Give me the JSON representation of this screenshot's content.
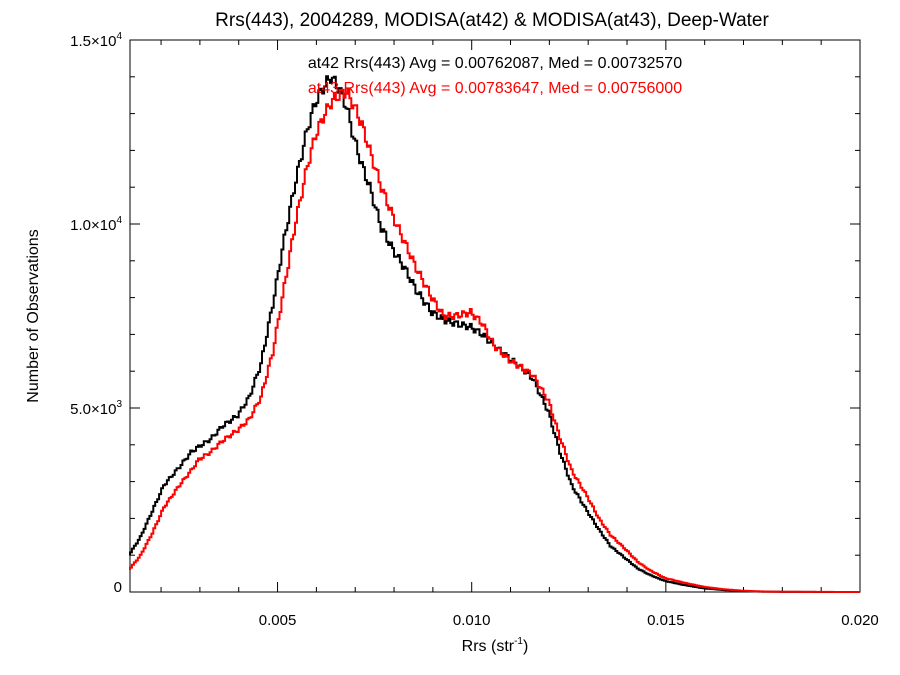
{
  "chart_data": {
    "type": "line",
    "title": "Rrs(443), 2004289, MODISA(at42) & MODISA(at43), Deep-Water",
    "xlabel_main": "Rrs (str",
    "xlabel_sup": "-1",
    "xlabel_close": ")",
    "ylabel": "Number of Observations",
    "xlim": [
      0.0012,
      0.02
    ],
    "ylim": [
      0,
      15000
    ],
    "x_ticks": [
      {
        "value": 0.005,
        "label": "0.005"
      },
      {
        "value": 0.01,
        "label": "0.010"
      },
      {
        "value": 0.015,
        "label": "0.015"
      },
      {
        "value": 0.02,
        "label": "0.020"
      }
    ],
    "y_ticks": [
      {
        "value": 0,
        "mant": "0",
        "exp": ""
      },
      {
        "value": 5000,
        "mant": "5.0×10",
        "exp": "3"
      },
      {
        "value": 10000,
        "mant": "1.0×10",
        "exp": "4"
      },
      {
        "value": 15000,
        "mant": "1.5×10",
        "exp": "4"
      }
    ],
    "x_minor_step": 0.001,
    "y_minor_step": 1000,
    "grid": false,
    "annotations": [
      {
        "text": "at42 Rrs(443) Avg = 0.00762087, Med = 0.00732570",
        "color": "#000000"
      },
      {
        "text": "at43 Rrs(443) Avg = 0.00783647, Med = 0.00756000",
        "color": "#ff0000"
      }
    ],
    "series": [
      {
        "name": "at42",
        "color": "#000000",
        "x": [
          0.0012,
          0.0015,
          0.0018,
          0.0021,
          0.0025,
          0.0028,
          0.003,
          0.0033,
          0.0036,
          0.004,
          0.0043,
          0.0046,
          0.0049,
          0.0052,
          0.0055,
          0.0058,
          0.006,
          0.0062,
          0.0064,
          0.0066,
          0.0068,
          0.007,
          0.0072,
          0.0074,
          0.0077,
          0.008,
          0.0083,
          0.0086,
          0.009,
          0.0093,
          0.0096,
          0.01,
          0.0103,
          0.0106,
          0.011,
          0.0113,
          0.0116,
          0.012,
          0.0123,
          0.0126,
          0.013,
          0.0133,
          0.0136,
          0.014,
          0.0143,
          0.0146,
          0.015,
          0.0155,
          0.016,
          0.0165,
          0.017,
          0.0175,
          0.018,
          0.019,
          0.02
        ],
        "y": [
          1000,
          1500,
          2200,
          2900,
          3400,
          3800,
          3950,
          4150,
          4500,
          4800,
          5300,
          6200,
          7800,
          9600,
          11200,
          12600,
          13300,
          13700,
          14000,
          13700,
          13200,
          12300,
          11600,
          11000,
          9900,
          9300,
          8800,
          8200,
          7600,
          7400,
          7300,
          7200,
          7000,
          6700,
          6350,
          6100,
          5800,
          4900,
          3800,
          2900,
          2200,
          1700,
          1250,
          900,
          640,
          470,
          300,
          190,
          100,
          55,
          25,
          10,
          4,
          1,
          0
        ]
      },
      {
        "name": "at43",
        "color": "#ff0000",
        "x": [
          0.0012,
          0.0015,
          0.0018,
          0.0021,
          0.0025,
          0.0028,
          0.003,
          0.0033,
          0.0036,
          0.004,
          0.0043,
          0.0046,
          0.0049,
          0.0052,
          0.0055,
          0.0058,
          0.006,
          0.0062,
          0.0064,
          0.0066,
          0.0068,
          0.007,
          0.0072,
          0.0074,
          0.0077,
          0.008,
          0.0083,
          0.0086,
          0.009,
          0.0093,
          0.0096,
          0.01,
          0.0103,
          0.0106,
          0.011,
          0.0113,
          0.0116,
          0.012,
          0.0123,
          0.0126,
          0.013,
          0.0133,
          0.0136,
          0.014,
          0.0143,
          0.0146,
          0.015,
          0.0155,
          0.016,
          0.0165,
          0.017,
          0.0175,
          0.018,
          0.019,
          0.02
        ],
        "y": [
          600,
          1000,
          1600,
          2300,
          2900,
          3300,
          3600,
          3800,
          4100,
          4400,
          4700,
          5300,
          6500,
          8300,
          10100,
          11600,
          12400,
          12900,
          13300,
          13500,
          13600,
          13200,
          12700,
          12000,
          11000,
          10200,
          9500,
          8800,
          8000,
          7500,
          7500,
          7600,
          7300,
          6700,
          6300,
          6100,
          5900,
          5200,
          4200,
          3300,
          2600,
          2000,
          1550,
          1150,
          820,
          600,
          380,
          250,
          140,
          75,
          35,
          15,
          6,
          2,
          0
        ]
      }
    ]
  }
}
